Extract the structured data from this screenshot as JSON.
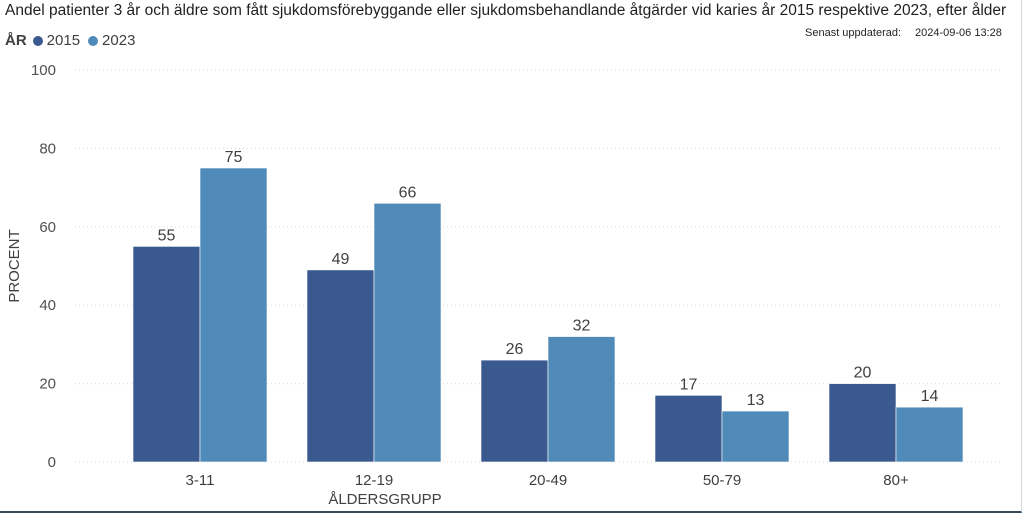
{
  "header": {
    "title": "Andel patienter 3 år och äldre som fått sjukdomsförebyggande eller sjukdomsbehandlande åtgärder vid karies år 2015 respektive 2023, efter ålder",
    "updated_label": "Senast uppdaterad:",
    "updated_value": "2024-09-06 13:28"
  },
  "legend": {
    "title": "ÅR",
    "position": "top-left"
  },
  "colors": {
    "series_2015": "#3a5a8f",
    "series_2023": "#508ab8",
    "text": "#404040",
    "grid": "#d9d9d9"
  },
  "chart_data": {
    "type": "bar",
    "title": "Andel patienter 3 år och äldre som fått sjukdomsförebyggande eller sjukdomsbehandlande åtgärder vid karies år 2015 respektive 2023, efter ålder",
    "xlabel": "ÅLDERSGRUPP",
    "ylabel": "PROCENT",
    "ylim": [
      0,
      100
    ],
    "yticks": [
      0,
      20,
      40,
      60,
      80,
      100
    ],
    "grid": true,
    "categories": [
      "3-11",
      "12-19",
      "20-49",
      "50-79",
      "80+"
    ],
    "series": [
      {
        "name": "2015",
        "values": [
          55,
          49,
          26,
          17,
          20
        ]
      },
      {
        "name": "2023",
        "values": [
          75,
          66,
          32,
          13,
          14
        ]
      }
    ]
  }
}
